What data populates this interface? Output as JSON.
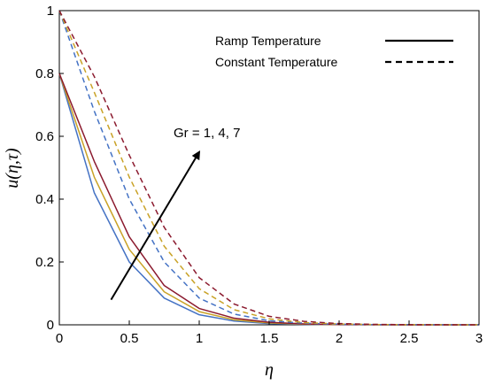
{
  "chart_data": {
    "type": "line",
    "xlabel": "η",
    "ylabel": "u(η,τ)",
    "xlim": [
      0,
      3
    ],
    "ylim": [
      0,
      1
    ],
    "xticks": [
      "0",
      "0.5",
      "1",
      "1.5",
      "2",
      "2.5",
      "3"
    ],
    "yticks": [
      "0",
      "0.2",
      "0.4",
      "0.6",
      "0.8",
      "1"
    ],
    "grid": false,
    "legend_position": "top-right",
    "legend": [
      {
        "label": "Ramp Temperature",
        "style": "solid"
      },
      {
        "label": "Constant Temperature",
        "style": "dashed"
      }
    ],
    "annotation": {
      "text": "Gr = 1, 4, 7",
      "arrow_from": [
        0.37,
        0.08
      ],
      "arrow_to": [
        1.0,
        0.55
      ]
    },
    "x": [
      0,
      0.25,
      0.5,
      0.75,
      1.0,
      1.25,
      1.5,
      1.75,
      2.0,
      2.25,
      2.5,
      2.75,
      3.0
    ],
    "series": [
      {
        "style": "solid",
        "color": "#4472c4",
        "values": [
          0.8,
          0.42,
          0.2,
          0.085,
          0.032,
          0.012,
          0.004,
          0.0015,
          0.0005,
          0.0002,
          0.0001,
          0,
          0
        ]
      },
      {
        "style": "solid",
        "color": "#c9a227",
        "values": [
          0.8,
          0.47,
          0.24,
          0.105,
          0.042,
          0.016,
          0.006,
          0.002,
          0.0008,
          0.0003,
          0.0001,
          0,
          0
        ]
      },
      {
        "style": "solid",
        "color": "#8b1a2e",
        "values": [
          0.8,
          0.52,
          0.28,
          0.125,
          0.052,
          0.021,
          0.008,
          0.003,
          0.001,
          0.0004,
          0.0001,
          0,
          0
        ]
      },
      {
        "style": "dashed",
        "color": "#4472c4",
        "values": [
          1.0,
          0.68,
          0.4,
          0.2,
          0.085,
          0.034,
          0.013,
          0.005,
          0.0018,
          0.0006,
          0.0002,
          0.0001,
          0
        ]
      },
      {
        "style": "dashed",
        "color": "#c9a227",
        "values": [
          1.0,
          0.74,
          0.47,
          0.25,
          0.115,
          0.048,
          0.019,
          0.007,
          0.0026,
          0.0009,
          0.0003,
          0.0001,
          0
        ]
      },
      {
        "style": "dashed",
        "color": "#8b1a2e",
        "values": [
          1.0,
          0.79,
          0.54,
          0.31,
          0.15,
          0.066,
          0.027,
          0.011,
          0.004,
          0.0014,
          0.0005,
          0.0002,
          0
        ]
      }
    ]
  }
}
